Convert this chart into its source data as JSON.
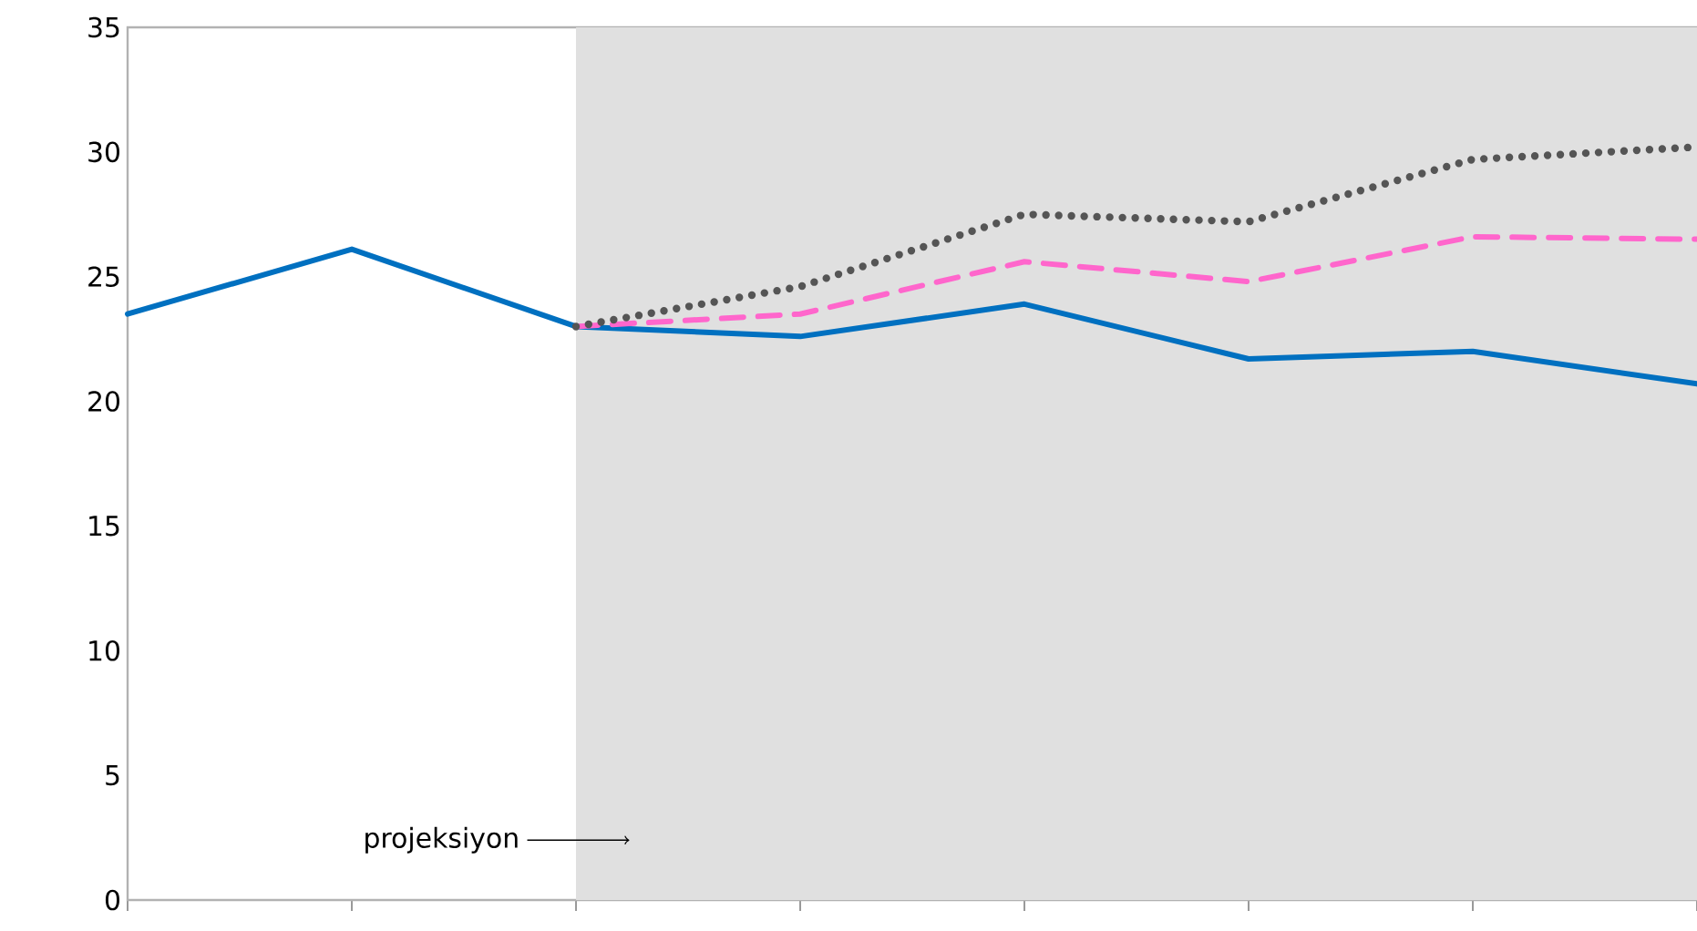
{
  "chart_data": {
    "type": "line",
    "categories": [
      null,
      null,
      null,
      null,
      null,
      null,
      null,
      null
    ],
    "series": [
      {
        "color": "#0070c0",
        "line_style": "solid",
        "values": [
          23.5,
          26.1,
          23.0,
          22.6,
          23.9,
          21.7,
          22.0,
          20.7
        ]
      },
      {
        "color": "#ff66cc",
        "line_style": "dashed",
        "values": [
          null,
          null,
          23.0,
          23.5,
          25.6,
          24.8,
          26.6,
          26.5
        ]
      },
      {
        "color": "#555555",
        "line_style": "dotted",
        "values": [
          null,
          null,
          23.0,
          24.6,
          27.5,
          27.2,
          29.7,
          30.2
        ]
      }
    ],
    "ylim": [
      0,
      35
    ],
    "yticks": [
      0,
      5,
      10,
      15,
      20,
      25,
      30,
      35
    ],
    "tick_labels": "y",
    "grid": false,
    "marker": "none",
    "annotations": [
      "projeksiyon"
    ]
  }
}
